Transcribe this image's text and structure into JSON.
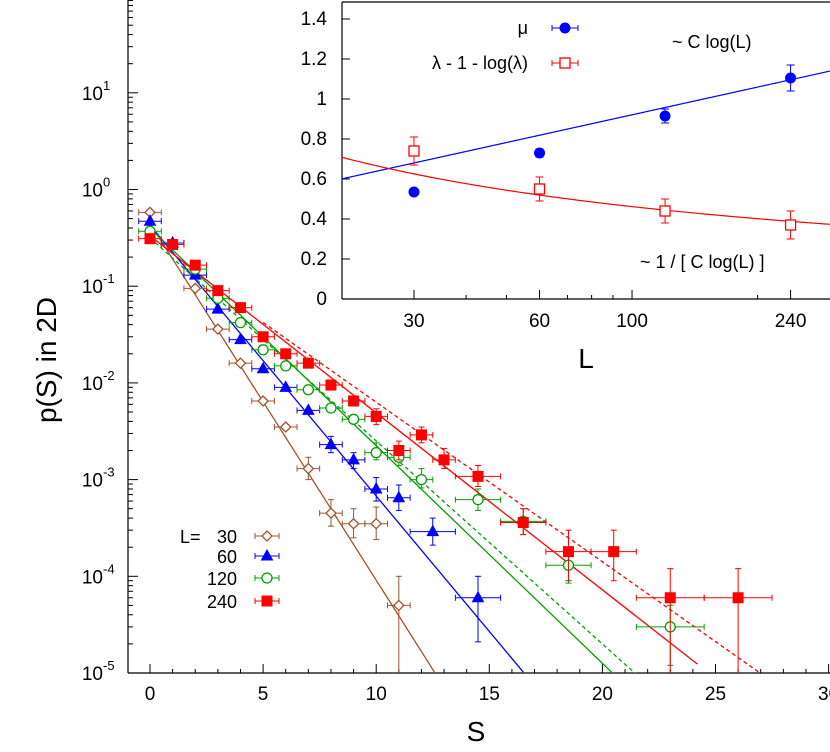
{
  "chart_data": [
    {
      "id": "main",
      "type": "scatter",
      "xlabel": "S",
      "ylabel": "p(S)  in 2D",
      "xlim": [
        -1,
        30.5
      ],
      "ylim_log10": [
        -5,
        1.9
      ],
      "yscale": "log",
      "x_ticks": [
        0,
        5,
        10,
        15,
        20,
        25,
        30
      ],
      "y_tick_mantissa": "10",
      "y_tick_exponents": [
        "-5",
        "-4",
        "-3",
        "-2",
        "-1",
        "0",
        "1"
      ],
      "legend_title": "L=",
      "legend_position": "bottom-left",
      "series": [
        {
          "name": "30",
          "color": "#a0522d",
          "marker": "open-diamond",
          "points": [
            {
              "x": 0,
              "y": 0.58,
              "xerr": 0.5
            },
            {
              "x": 1,
              "y": 0.28,
              "xerr": 0.5
            },
            {
              "x": 2,
              "y": 0.095,
              "xerr": 0.5
            },
            {
              "x": 3,
              "y": 0.036,
              "xerr": 0.5
            },
            {
              "x": 4,
              "y": 0.016,
              "xerr": 0.5
            },
            {
              "x": 5,
              "y": 0.0065,
              "xerr": 0.5
            },
            {
              "x": 6,
              "y": 0.0035,
              "xerr": 0.5
            },
            {
              "x": 7,
              "y": 0.0013,
              "xerr": 0.5,
              "ylo": 0.001,
              "yhi": 0.0017
            },
            {
              "x": 8,
              "y": 0.00045,
              "xerr": 0.5,
              "ylo": 0.00033,
              "yhi": 0.00062
            },
            {
              "x": 9,
              "y": 0.00035,
              "xerr": 0.5,
              "ylo": 0.00025,
              "yhi": 0.0005
            },
            {
              "x": 10,
              "y": 0.00035,
              "xerr": 0.5,
              "ylo": 0.00024,
              "yhi": 0.00052
            },
            {
              "x": 11,
              "y": 5e-05,
              "xerr": 0.5,
              "ylo": 5e-06,
              "yhi": 0.0001
            }
          ],
          "fit": {
            "style": "solid",
            "x_range": [
              0,
              12.6
            ],
            "log10_intercept": -0.35,
            "log10_slope": -0.369
          }
        },
        {
          "name": "60",
          "color": "#0000ff",
          "marker": "filled-triangle",
          "points": [
            {
              "x": 0,
              "y": 0.47,
              "xerr": 0.5
            },
            {
              "x": 1,
              "y": 0.28,
              "xerr": 0.5
            },
            {
              "x": 2,
              "y": 0.13,
              "xerr": 0.5
            },
            {
              "x": 3,
              "y": 0.058,
              "xerr": 0.5
            },
            {
              "x": 4,
              "y": 0.028,
              "xerr": 0.5
            },
            {
              "x": 5,
              "y": 0.014,
              "xerr": 0.5
            },
            {
              "x": 6,
              "y": 0.009,
              "xerr": 0.5
            },
            {
              "x": 7,
              "y": 0.0052,
              "xerr": 0.5
            },
            {
              "x": 8,
              "y": 0.0023,
              "xerr": 0.5,
              "ylo": 0.0019,
              "yhi": 0.0028
            },
            {
              "x": 9,
              "y": 0.0016,
              "xerr": 0.5,
              "ylo": 0.0013,
              "yhi": 0.0019
            },
            {
              "x": 10,
              "y": 0.0008,
              "xerr": 0.5,
              "ylo": 0.0006,
              "yhi": 0.00105
            },
            {
              "x": 11,
              "y": 0.00065,
              "xerr": 0.5,
              "ylo": 0.00048,
              "yhi": 0.00088
            },
            {
              "x": 12.5,
              "y": 0.00029,
              "xerr": 1,
              "ylo": 0.00021,
              "yhi": 0.0004
            },
            {
              "x": 14.5,
              "y": 6e-05,
              "xerr": 1,
              "ylo": 2.1e-05,
              "yhi": 0.0001
            }
          ],
          "fit": {
            "style": "solid",
            "x_range": [
              0,
              16.5
            ],
            "log10_intercept": -0.37,
            "log10_slope": -0.28
          }
        },
        {
          "name": "120",
          "color": "#00a000",
          "marker": "open-circle",
          "points": [
            {
              "x": 0,
              "y": 0.37,
              "xerr": 0.5
            },
            {
              "x": 1,
              "y": 0.27,
              "xerr": 0.5
            },
            {
              "x": 2,
              "y": 0.15,
              "xerr": 0.5
            },
            {
              "x": 3,
              "y": 0.075,
              "xerr": 0.5
            },
            {
              "x": 4,
              "y": 0.042,
              "xerr": 0.5
            },
            {
              "x": 5,
              "y": 0.022,
              "xerr": 0.5
            },
            {
              "x": 6,
              "y": 0.015,
              "xerr": 0.5
            },
            {
              "x": 7,
              "y": 0.0085,
              "xerr": 0.5
            },
            {
              "x": 8,
              "y": 0.0055,
              "xerr": 0.5
            },
            {
              "x": 9,
              "y": 0.0042,
              "xerr": 0.5
            },
            {
              "x": 10,
              "y": 0.0019,
              "xerr": 0.5,
              "ylo": 0.0016,
              "yhi": 0.0024
            },
            {
              "x": 11,
              "y": 0.0017,
              "xerr": 0.5,
              "ylo": 0.0014,
              "yhi": 0.0021
            },
            {
              "x": 12,
              "y": 0.001,
              "xerr": 0.5,
              "ylo": 0.00082,
              "yhi": 0.0013
            },
            {
              "x": 14.5,
              "y": 0.00062,
              "xerr": 1,
              "ylo": 0.00048,
              "yhi": 0.0008
            },
            {
              "x": 16.5,
              "y": 0.00037,
              "xerr": 1,
              "ylo": 0.00027,
              "yhi": 0.0005
            },
            {
              "x": 18.5,
              "y": 0.00013,
              "xerr": 1,
              "ylo": 8.5e-05,
              "yhi": 0.00019
            },
            {
              "x": 23,
              "y": 3e-05,
              "xerr": 1.5,
              "ylo": 1.2e-05,
              "yhi": 5e-05
            }
          ],
          "fit": {
            "style": "solid",
            "x_range": [
              0,
              20.5
            ],
            "log10_intercept": -0.4,
            "log10_slope": -0.225
          },
          "fit2": {
            "style": "dashed",
            "x_range": [
              0,
              21.5
            ],
            "log10_intercept": -0.5,
            "log10_slope": -0.21
          }
        },
        {
          "name": "240",
          "color": "#ff0000",
          "marker": "filled-square",
          "points": [
            {
              "x": 0,
              "y": 0.31,
              "xerr": 0.5
            },
            {
              "x": 1,
              "y": 0.27,
              "xerr": 0.5
            },
            {
              "x": 2,
              "y": 0.165,
              "xerr": 0.5
            },
            {
              "x": 3,
              "y": 0.09,
              "xerr": 0.5
            },
            {
              "x": 4,
              "y": 0.06,
              "xerr": 0.5
            },
            {
              "x": 5,
              "y": 0.03,
              "xerr": 0.5
            },
            {
              "x": 6,
              "y": 0.02,
              "xerr": 0.5
            },
            {
              "x": 7,
              "y": 0.016,
              "xerr": 0.5
            },
            {
              "x": 8,
              "y": 0.0095,
              "xerr": 0.5
            },
            {
              "x": 9,
              "y": 0.0065,
              "xerr": 0.5
            },
            {
              "x": 10,
              "y": 0.0045,
              "xerr": 0.5,
              "ylo": 0.0037,
              "yhi": 0.0054
            },
            {
              "x": 11,
              "y": 0.002,
              "xerr": 0.5,
              "ylo": 0.0016,
              "yhi": 0.0025
            },
            {
              "x": 12,
              "y": 0.0029,
              "xerr": 0.5,
              "ylo": 0.0024,
              "yhi": 0.0035
            },
            {
              "x": 13,
              "y": 0.0016,
              "xerr": 0.5,
              "ylo": 0.0013,
              "yhi": 0.0021
            },
            {
              "x": 14.5,
              "y": 0.00108,
              "xerr": 1,
              "ylo": 0.00085,
              "yhi": 0.0014
            },
            {
              "x": 16.5,
              "y": 0.00036,
              "xerr": 1,
              "ylo": 0.00027,
              "yhi": 0.0005
            },
            {
              "x": 18.5,
              "y": 0.00018,
              "xerr": 1,
              "ylo": 9e-05,
              "yhi": 0.0003
            },
            {
              "x": 20.5,
              "y": 0.00018,
              "xerr": 1,
              "ylo": 9e-05,
              "yhi": 0.0003
            },
            {
              "x": 23,
              "y": 6e-05,
              "xerr": 1.5,
              "ylo": 8e-06,
              "yhi": 0.00012
            },
            {
              "x": 26,
              "y": 6e-05,
              "xerr": 1.5,
              "ylo": 8e-06,
              "yhi": 0.00012
            }
          ],
          "fit": {
            "style": "solid",
            "x_range": [
              0,
              24.2
            ],
            "log10_intercept": -0.48,
            "log10_slope": -0.183
          },
          "fit2": {
            "style": "dashed",
            "x_range": [
              5,
              27
            ],
            "log10_intercept": -0.55,
            "log10_slope": -0.165
          }
        }
      ]
    },
    {
      "id": "inset",
      "type": "scatter",
      "xlabel": "L",
      "xscale": "log",
      "xlim": [
        20,
        300
      ],
      "ylim": [
        0,
        1.45
      ],
      "x_ticks": [
        30,
        60,
        100,
        240
      ],
      "y_ticks": [
        "0",
        "0.2",
        "0.4",
        "0.6",
        "0.8",
        "1",
        "1.2",
        "1.4"
      ],
      "annotations": [
        "~ C log(L)",
        "~ 1 / [ C log(L) ]"
      ],
      "legend_position": "top-left",
      "series": [
        {
          "name": "μ",
          "color": "#0000ff",
          "marker": "filled-circle",
          "points": [
            {
              "x": 30,
              "y": 0.535,
              "yerr": 0.012
            },
            {
              "x": 60,
              "y": 0.73,
              "yerr": 0.02
            },
            {
              "x": 120,
              "y": 0.915,
              "yerr": 0.035
            },
            {
              "x": 240,
              "y": 1.105,
              "yerr": 0.065
            }
          ],
          "fit": "C log(L)",
          "fit_C": 0.2
        },
        {
          "name": "λ - 1 - log(λ)",
          "color": "#ff0000",
          "marker": "open-square",
          "points": [
            {
              "x": 30,
              "y": 0.74,
              "yerr": 0.07
            },
            {
              "x": 60,
              "y": 0.55,
              "yerr": 0.06
            },
            {
              "x": 120,
              "y": 0.44,
              "yerr": 0.06
            },
            {
              "x": 240,
              "y": 0.37,
              "yerr": 0.07
            }
          ],
          "fit": "1 / [ C log(L) ]",
          "fit_C": 0.47
        }
      ]
    }
  ]
}
